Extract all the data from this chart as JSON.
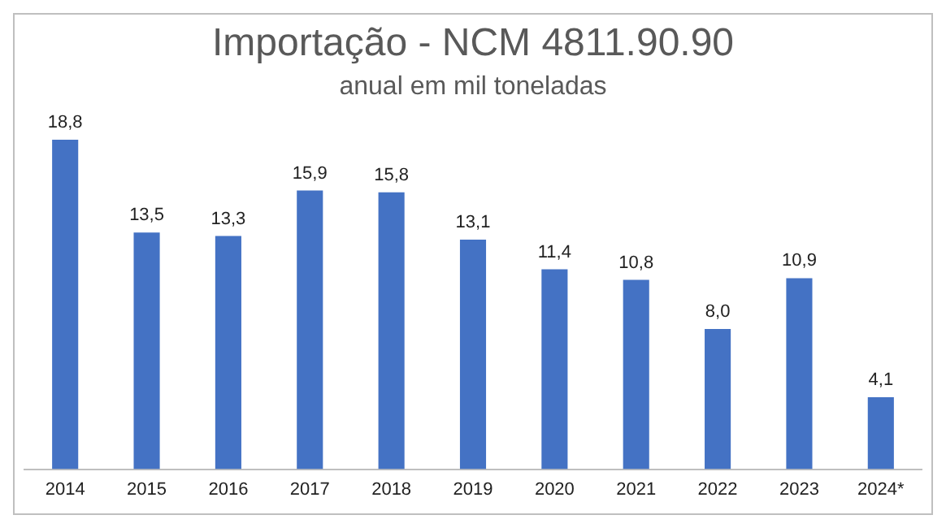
{
  "chart_data": {
    "type": "bar",
    "title": "Importação - NCM 4811.90.90",
    "subtitle": "anual em mil toneladas",
    "categories": [
      "2014",
      "2015",
      "2016",
      "2017",
      "2018",
      "2019",
      "2020",
      "2021",
      "2022",
      "2023",
      "2024*"
    ],
    "values": [
      18.8,
      13.5,
      13.3,
      15.9,
      15.8,
      13.1,
      11.4,
      10.8,
      8.0,
      10.9,
      4.1
    ],
    "value_labels": [
      "18,8",
      "13,5",
      "13,3",
      "15,9",
      "15,8",
      "13,1",
      "11,4",
      "10,8",
      "8,0",
      "10,9",
      "4,1"
    ],
    "color": "#4472c4",
    "grid": false,
    "legend": false
  }
}
